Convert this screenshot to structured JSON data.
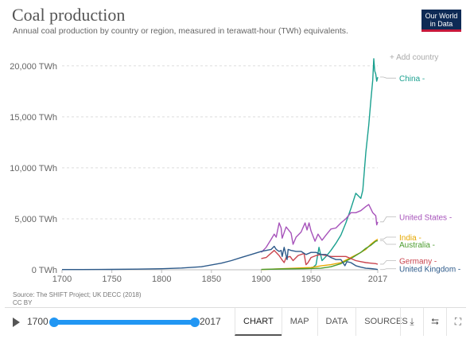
{
  "header": {
    "title": "Coal production",
    "subtitle": "Annual coal production by country or region, measured in terawatt-hour (TWh) equivalents.",
    "logo": [
      "Our World",
      "in Data"
    ]
  },
  "add_country": "+ Add country",
  "source": [
    "Source: The SHIFT Project; UK DECC (2018)",
    "CC BY"
  ],
  "controls": {
    "start_year": "1700",
    "end_year": "2017",
    "tabs": [
      "CHART",
      "MAP",
      "DATA",
      "SOURCES"
    ],
    "active_tab": "CHART",
    "icon_names": [
      "download-icon",
      "share-icon",
      "fullscreen-icon"
    ]
  },
  "chart_data": {
    "type": "line",
    "xlim": [
      1700,
      2017
    ],
    "ylim": [
      0,
      21000
    ],
    "x_ticks": [
      "1700",
      "1750",
      "1800",
      "1850",
      "1900",
      "1950",
      "2017"
    ],
    "y_ticks": [
      {
        "value": 0,
        "label": "0 TWh"
      },
      {
        "value": 5000,
        "label": "5,000 TWh"
      },
      {
        "value": 10000,
        "label": "10,000 TWh"
      },
      {
        "value": 15000,
        "label": "15,000 TWh"
      },
      {
        "value": 20000,
        "label": "20,000 TWh"
      }
    ],
    "grid": true,
    "series": [
      {
        "name": "China",
        "color": "#1aa08f",
        "points": [
          [
            1950,
            80
          ],
          [
            1955,
            500
          ],
          [
            1958,
            2200
          ],
          [
            1961,
            900
          ],
          [
            1965,
            1300
          ],
          [
            1970,
            1900
          ],
          [
            1975,
            2600
          ],
          [
            1980,
            3400
          ],
          [
            1985,
            4600
          ],
          [
            1990,
            6000
          ],
          [
            1995,
            7500
          ],
          [
            2000,
            7000
          ],
          [
            2002,
            7800
          ],
          [
            2005,
            11500
          ],
          [
            2008,
            14200
          ],
          [
            2010,
            16500
          ],
          [
            2012,
            18600
          ],
          [
            2013,
            20700
          ],
          [
            2014,
            19500
          ],
          [
            2015,
            19200
          ],
          [
            2016,
            18500
          ],
          [
            2017,
            18900
          ]
        ]
      },
      {
        "name": "United States",
        "color": "#a652ba",
        "points": [
          [
            1900,
            1700
          ],
          [
            1905,
            2200
          ],
          [
            1910,
            3000
          ],
          [
            1913,
            3500
          ],
          [
            1915,
            3200
          ],
          [
            1918,
            4600
          ],
          [
            1920,
            4100
          ],
          [
            1921,
            3100
          ],
          [
            1925,
            4200
          ],
          [
            1930,
            3600
          ],
          [
            1932,
            2500
          ],
          [
            1935,
            3200
          ],
          [
            1940,
            3700
          ],
          [
            1944,
            4600
          ],
          [
            1946,
            3900
          ],
          [
            1948,
            4600
          ],
          [
            1950,
            3800
          ],
          [
            1954,
            2800
          ],
          [
            1957,
            3500
          ],
          [
            1961,
            2900
          ],
          [
            1965,
            3400
          ],
          [
            1970,
            4000
          ],
          [
            1975,
            4100
          ],
          [
            1980,
            4600
          ],
          [
            1985,
            5000
          ],
          [
            1990,
            5600
          ],
          [
            1995,
            5600
          ],
          [
            2000,
            5800
          ],
          [
            2005,
            6200
          ],
          [
            2008,
            6400
          ],
          [
            2010,
            6000
          ],
          [
            2012,
            5600
          ],
          [
            2015,
            5300
          ],
          [
            2016,
            4400
          ],
          [
            2017,
            4700
          ]
        ]
      },
      {
        "name": "India",
        "color": "#e6a800",
        "points": [
          [
            1900,
            20
          ],
          [
            1920,
            100
          ],
          [
            1940,
            180
          ],
          [
            1950,
            220
          ],
          [
            1960,
            380
          ],
          [
            1970,
            500
          ],
          [
            1980,
            700
          ],
          [
            1990,
            1200
          ],
          [
            2000,
            1700
          ],
          [
            2005,
            2000
          ],
          [
            2010,
            2500
          ],
          [
            2014,
            2800
          ],
          [
            2017,
            3000
          ]
        ]
      },
      {
        "name": "Australia",
        "color": "#4c9c2e",
        "points": [
          [
            1900,
            30
          ],
          [
            1920,
            80
          ],
          [
            1940,
            100
          ],
          [
            1960,
            150
          ],
          [
            1970,
            300
          ],
          [
            1980,
            600
          ],
          [
            1990,
            1100
          ],
          [
            2000,
            1700
          ],
          [
            2005,
            2100
          ],
          [
            2010,
            2400
          ],
          [
            2015,
            2800
          ],
          [
            2017,
            2850
          ]
        ]
      },
      {
        "name": "Germany",
        "color": "#c9444e",
        "points": [
          [
            1900,
            1100
          ],
          [
            1905,
            1200
          ],
          [
            1913,
            1900
          ],
          [
            1918,
            1400
          ],
          [
            1920,
            1100
          ],
          [
            1923,
            700
          ],
          [
            1925,
            1200
          ],
          [
            1929,
            1300
          ],
          [
            1932,
            900
          ],
          [
            1937,
            1400
          ],
          [
            1943,
            1600
          ],
          [
            1945,
            500
          ],
          [
            1947,
            700
          ],
          [
            1950,
            1200
          ],
          [
            1955,
            1400
          ],
          [
            1960,
            1500
          ],
          [
            1965,
            1400
          ],
          [
            1970,
            1300
          ],
          [
            1975,
            1300
          ],
          [
            1980,
            1300
          ],
          [
            1985,
            1300
          ],
          [
            1990,
            1100
          ],
          [
            1995,
            900
          ],
          [
            2000,
            800
          ],
          [
            2005,
            700
          ],
          [
            2010,
            650
          ],
          [
            2015,
            600
          ],
          [
            2017,
            550
          ]
        ]
      },
      {
        "name": "United Kingdom",
        "color": "#2d5a8a",
        "points": [
          [
            1700,
            20
          ],
          [
            1720,
            25
          ],
          [
            1750,
            40
          ],
          [
            1775,
            60
          ],
          [
            1800,
            100
          ],
          [
            1820,
            170
          ],
          [
            1840,
            300
          ],
          [
            1860,
            650
          ],
          [
            1870,
            900
          ],
          [
            1880,
            1200
          ],
          [
            1890,
            1500
          ],
          [
            1900,
            1800
          ],
          [
            1905,
            1900
          ],
          [
            1910,
            2000
          ],
          [
            1913,
            2300
          ],
          [
            1915,
            2000
          ],
          [
            1918,
            1800
          ],
          [
            1920,
            1900
          ],
          [
            1921,
            1300
          ],
          [
            1923,
            2200
          ],
          [
            1926,
            1000
          ],
          [
            1927,
            2000
          ],
          [
            1930,
            1900
          ],
          [
            1935,
            1800
          ],
          [
            1940,
            1800
          ],
          [
            1945,
            1500
          ],
          [
            1950,
            1700
          ],
          [
            1955,
            1700
          ],
          [
            1960,
            1500
          ],
          [
            1965,
            1500
          ],
          [
            1970,
            1200
          ],
          [
            1975,
            1000
          ],
          [
            1980,
            1000
          ],
          [
            1984,
            400
          ],
          [
            1986,
            800
          ],
          [
            1990,
            700
          ],
          [
            1995,
            400
          ],
          [
            2000,
            260
          ],
          [
            2005,
            150
          ],
          [
            2010,
            120
          ],
          [
            2015,
            60
          ],
          [
            2017,
            20
          ]
        ]
      }
    ],
    "series_labels": [
      {
        "text": "China -",
        "color": "#1aa08f",
        "at": 18800
      },
      {
        "text": "United States -",
        "color": "#a652ba",
        "at": 5200
      },
      {
        "text": "India -",
        "color": "#e6a800",
        "at": 3200
      },
      {
        "text": "Australia -",
        "color": "#4c9c2e",
        "at": 2500
      },
      {
        "text": "Germany -",
        "color": "#c9444e",
        "at": 900
      },
      {
        "text": "United Kingdom -",
        "color": "#2d5a8a",
        "at": 100
      }
    ]
  }
}
